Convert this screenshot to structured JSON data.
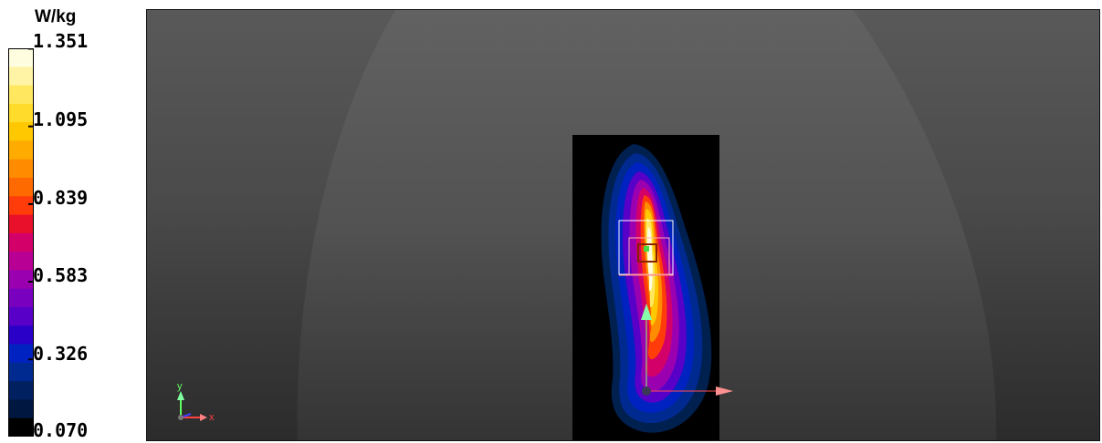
{
  "legend": {
    "unit": "W/kg",
    "ticks": [
      "1.351",
      "1.095",
      "0.839",
      "0.583",
      "0.326",
      "0.070"
    ],
    "colors": [
      "#fffde0",
      "#fff4a6",
      "#ffe860",
      "#ffdc2b",
      "#ffc800",
      "#ffab00",
      "#ff8c00",
      "#ff6a00",
      "#ff3c0a",
      "#e8102b",
      "#d4006a",
      "#b80094",
      "#9a00b0",
      "#7a00c0",
      "#5800c8",
      "#2a00c8",
      "#0022c0",
      "#002a90",
      "#002060",
      "#001840",
      "#000000"
    ]
  },
  "scene": {
    "axes_labels": {
      "x": "x",
      "y": "y"
    },
    "background": "#4f4f4f",
    "phantom": "#5a5a5a",
    "measurement_area": "#000000"
  }
}
